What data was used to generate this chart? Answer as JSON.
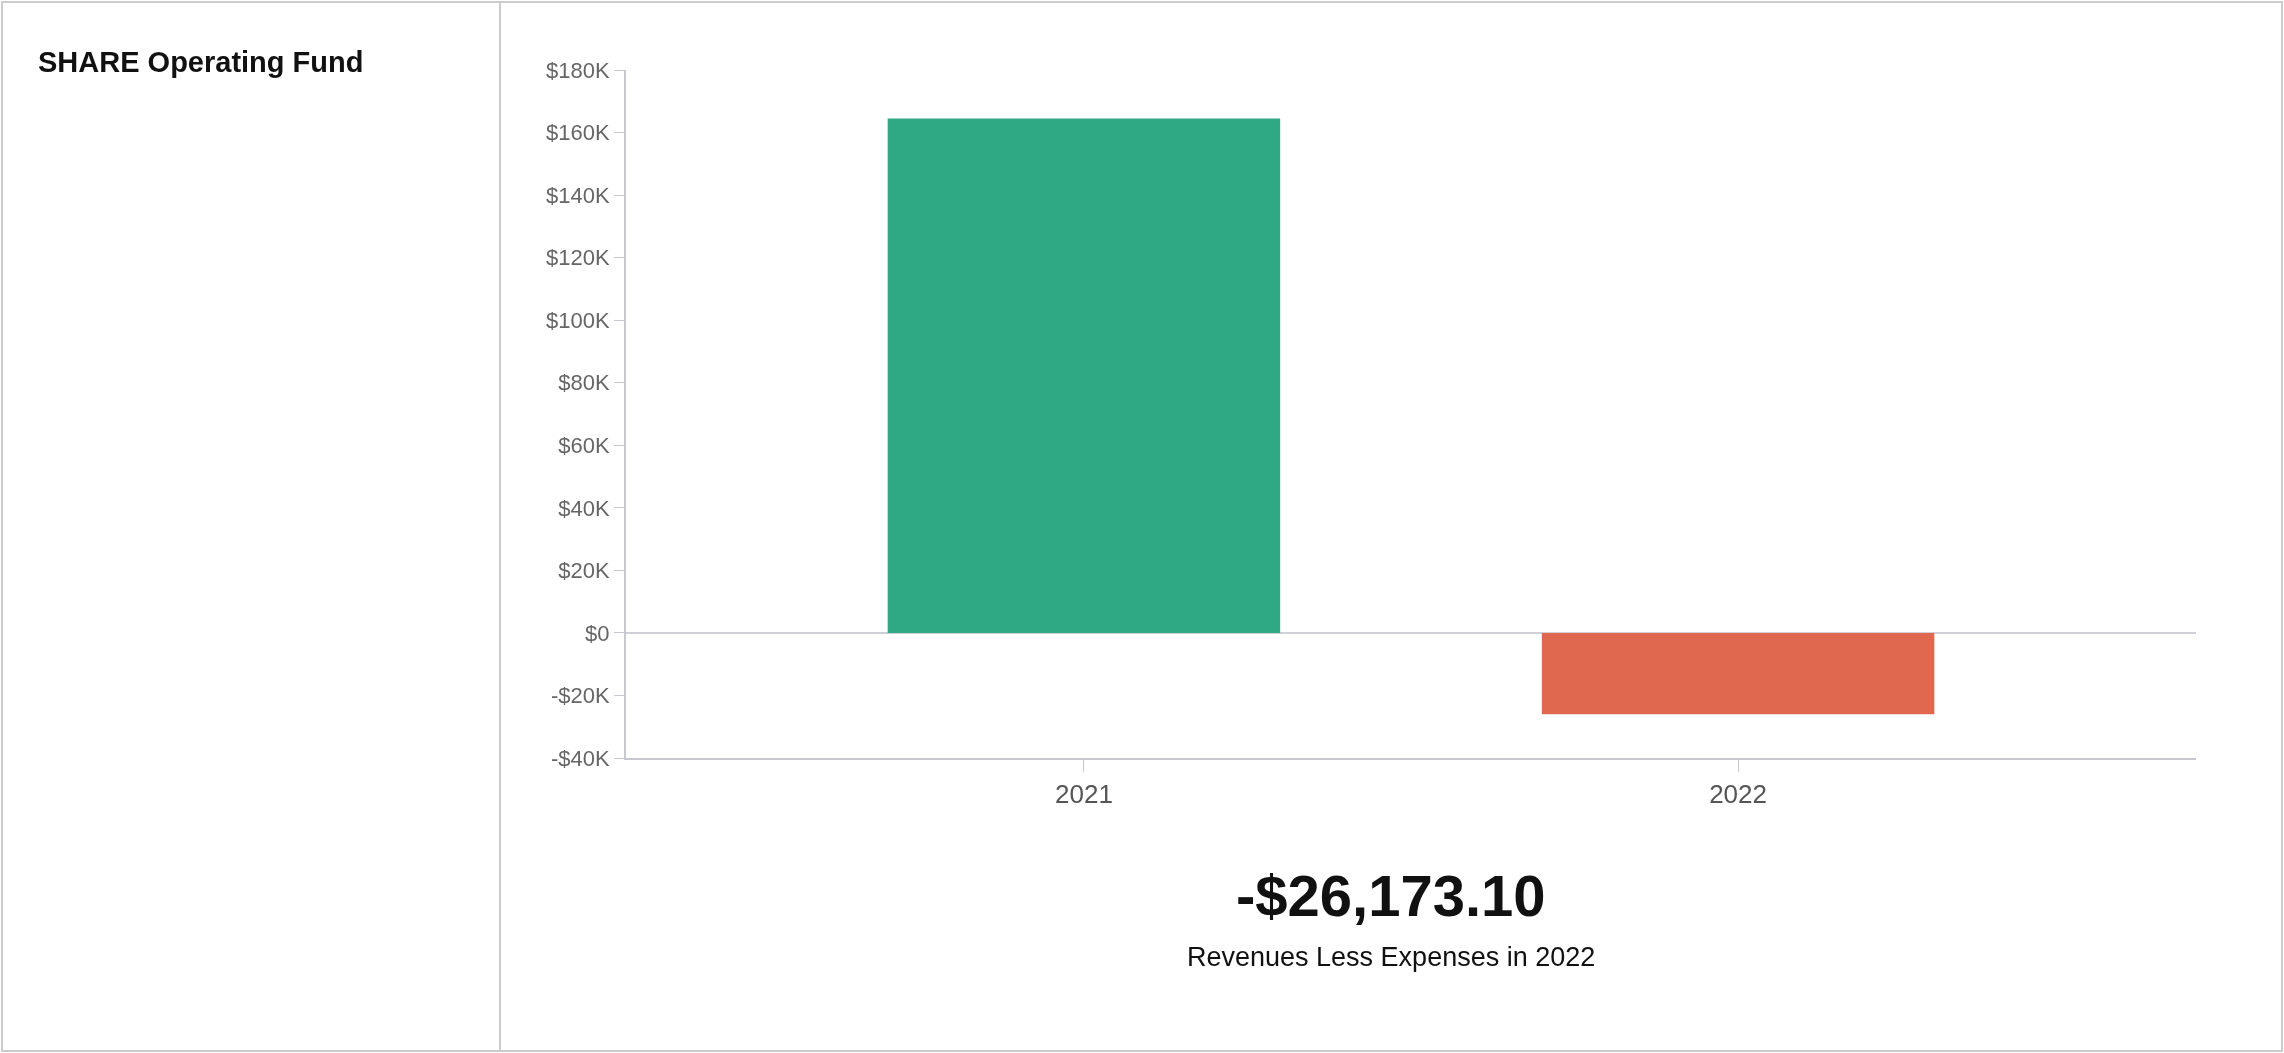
{
  "chart_data": {
    "type": "bar",
    "title": "SHARE Operating Fund",
    "categories": [
      "2021",
      "2022"
    ],
    "values": [
      164500,
      -26000
    ],
    "ref_lines": [
      {
        "axis": "y",
        "value": 0,
        "color": "#d0d0d8"
      }
    ],
    "colors": [
      "#2ea984",
      "#e0684e"
    ],
    "ylim": [
      -40000,
      180000
    ],
    "yticks": [
      {
        "value": -40000,
        "label": "-$40K"
      },
      {
        "value": -20000,
        "label": "-$20K"
      },
      {
        "value": 0,
        "label": "$0"
      },
      {
        "value": 20000,
        "label": "$20K"
      },
      {
        "value": 40000,
        "label": "$40K"
      },
      {
        "value": 60000,
        "label": "$60K"
      },
      {
        "value": 80000,
        "label": "$80K"
      },
      {
        "value": 100000,
        "label": "$100K"
      },
      {
        "value": 120000,
        "label": "$120K"
      },
      {
        "value": 140000,
        "label": "$140K"
      },
      {
        "value": 160000,
        "label": "$160K"
      },
      {
        "value": 180000,
        "label": "$180K"
      }
    ],
    "annotations": [
      "-$26,173.10",
      "Revenues Less Expenses in 2022"
    ],
    "grid": false,
    "legend": false
  }
}
